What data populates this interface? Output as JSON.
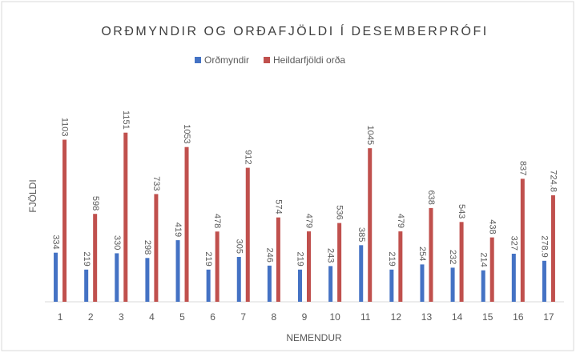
{
  "chart_data": {
    "type": "bar",
    "title": "ORÐMYNDIR OG ORÐAFJÖLDI Í DESEMBERPRÓFI",
    "x_label": "NEMENDUR",
    "y_label": "FJÖLDI",
    "categories": [
      "1",
      "2",
      "3",
      "4",
      "5",
      "6",
      "7",
      "8",
      "9",
      "10",
      "11",
      "12",
      "13",
      "14",
      "15",
      "16",
      "17"
    ],
    "series": [
      {
        "name": "Orðmyndir",
        "color": "#4472c4",
        "values": [
          334,
          219,
          330,
          298,
          419,
          219,
          305,
          246,
          219,
          243,
          385,
          219,
          254,
          232,
          214,
          327,
          278.9
        ]
      },
      {
        "name": "Heildarfjöldi orða",
        "color": "#c0504d",
        "values": [
          1103,
          598,
          1151,
          733,
          1053,
          478,
          912,
          574,
          479,
          536,
          1045,
          479,
          638,
          543,
          438,
          837,
          724.8
        ]
      }
    ],
    "ylim": [
      0,
      1400
    ],
    "grid": false,
    "legend": "top"
  }
}
